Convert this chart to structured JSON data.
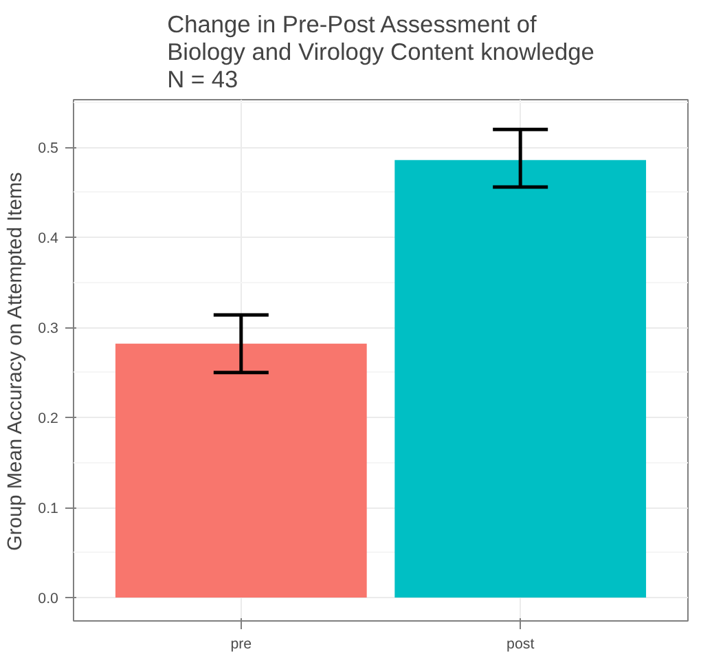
{
  "chart_data": {
    "type": "bar",
    "title": "Change in Pre-Post Assessment of\nBiology and Virology Content knowledge\nN = 43",
    "ylabel": "Group Mean Accuracy on Attempted Items",
    "categories": [
      "pre",
      "post"
    ],
    "values": [
      0.282,
      0.486
    ],
    "colors": [
      "#f8766d",
      "#00bfc4"
    ],
    "errors": [
      [
        0.25,
        0.314
      ],
      [
        0.456,
        0.52
      ]
    ],
    "ylim": [
      -0.026,
      0.553
    ],
    "yticks": [
      {
        "value": 0,
        "label": "0.0"
      },
      0.1,
      0.2,
      0.3,
      0.4,
      0.5
    ],
    "grid": true
  }
}
